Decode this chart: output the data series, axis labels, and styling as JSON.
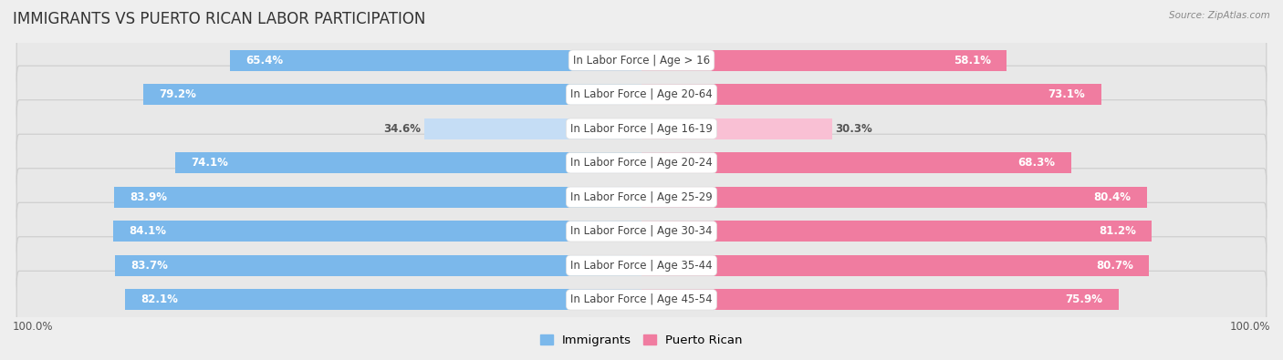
{
  "title": "IMMIGRANTS VS PUERTO RICAN LABOR PARTICIPATION",
  "source": "Source: ZipAtlas.com",
  "categories": [
    "In Labor Force | Age > 16",
    "In Labor Force | Age 20-64",
    "In Labor Force | Age 16-19",
    "In Labor Force | Age 20-24",
    "In Labor Force | Age 25-29",
    "In Labor Force | Age 30-34",
    "In Labor Force | Age 35-44",
    "In Labor Force | Age 45-54"
  ],
  "immigrants": [
    65.4,
    79.2,
    34.6,
    74.1,
    83.9,
    84.1,
    83.7,
    82.1
  ],
  "puerto_rican": [
    58.1,
    73.1,
    30.3,
    68.3,
    80.4,
    81.2,
    80.7,
    75.9
  ],
  "immigrant_color": "#7bb8eb",
  "puerto_rican_color": "#f07ca0",
  "immigrant_color_light": "#c5ddf5",
  "puerto_rican_color_light": "#f9c0d4",
  "bg_color": "#eeeeee",
  "row_bg": "#e8e8e8",
  "max_value": 100.0,
  "bar_height": 0.62,
  "title_fontsize": 12,
  "label_fontsize": 8.5,
  "value_fontsize": 8.5,
  "legend_fontsize": 9.5
}
